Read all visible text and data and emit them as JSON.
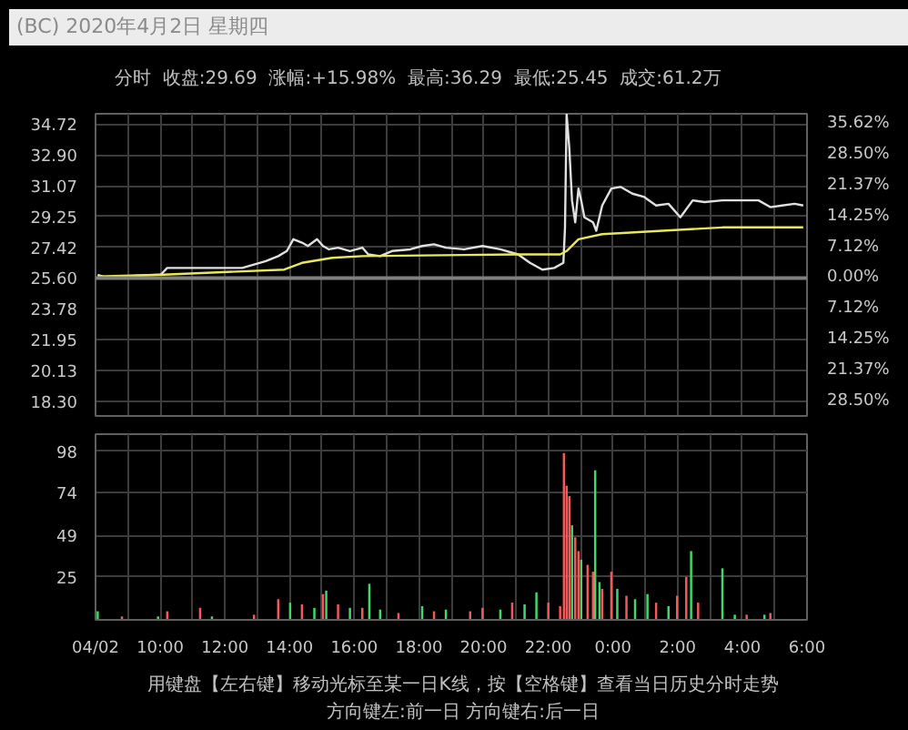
{
  "chart_data": [
    {
      "type": "line",
      "title": "(BC) 2020年4月2日 星期四",
      "subtitle": "分时  收盘:29.69  涨幅:+15.98%  最高:36.29  最低:25.45  成交:61.2万",
      "xlim": [
        "2020-04-02T08:00",
        "2020-04-03T06:00"
      ],
      "ylim": [
        17.43,
        35.33
      ],
      "y2lim": [
        -31.91,
        38.01
      ],
      "grid": true,
      "tick_labels": "y",
      "xticks": [
        {
          "value": "2020-04-02T08:00",
          "label": null
        },
        {
          "value": "2020-04-02T09:00",
          "label": null
        },
        {
          "value": "2020-04-02T10:00",
          "label": null
        },
        {
          "value": "2020-04-02T11:00",
          "label": null
        },
        {
          "value": "2020-04-02T12:00",
          "label": null
        },
        {
          "value": "2020-04-02T13:00",
          "label": null
        },
        {
          "value": "2020-04-02T14:00",
          "label": null
        },
        {
          "value": "2020-04-02T15:00",
          "label": null
        },
        {
          "value": "2020-04-02T16:00",
          "label": null
        },
        {
          "value": "2020-04-02T17:00",
          "label": null
        },
        {
          "value": "2020-04-02T18:00",
          "label": null
        },
        {
          "value": "2020-04-02T19:00",
          "label": null
        },
        {
          "value": "2020-04-02T20:00",
          "label": null
        },
        {
          "value": "2020-04-02T21:00",
          "label": null
        },
        {
          "value": "2020-04-02T22:00",
          "label": null
        },
        {
          "value": "2020-04-02T23:00",
          "label": null
        },
        {
          "value": "2020-04-03T00:00",
          "label": null
        },
        {
          "value": "2020-04-03T01:00",
          "label": null
        },
        {
          "value": "2020-04-03T02:00",
          "label": null
        },
        {
          "value": "2020-04-03T03:00",
          "label": null
        },
        {
          "value": "2020-04-03T04:00",
          "label": null
        },
        {
          "value": "2020-04-03T05:00",
          "label": null
        },
        {
          "value": "2020-04-03T06:00",
          "label": null
        }
      ],
      "yticks": [
        {
          "value": 34.72,
          "label": "34.72"
        },
        {
          "value": 32.9,
          "label": "32.90"
        },
        {
          "value": 31.07,
          "label": "31.07"
        },
        {
          "value": 29.25,
          "label": "29.25"
        },
        {
          "value": 27.42,
          "label": "27.42"
        },
        {
          "value": 25.6,
          "label": "25.60"
        },
        {
          "value": 23.78,
          "label": "23.78"
        },
        {
          "value": 21.95,
          "label": "21.95"
        },
        {
          "value": 20.13,
          "label": "20.13"
        },
        {
          "value": 18.3,
          "label": "18.30"
        }
      ],
      "y2ticks": [
        {
          "value": 35.62,
          "label": "35.62%"
        },
        {
          "value": 28.5,
          "label": "28.50%"
        },
        {
          "value": 21.37,
          "label": "21.37%"
        },
        {
          "value": 14.25,
          "label": "14.25%"
        },
        {
          "value": 7.12,
          "label": "7.12%"
        },
        {
          "value": 0,
          "label": "0.00%"
        },
        {
          "value": -7.12,
          "label": "7.12%"
        },
        {
          "value": -14.25,
          "label": "14.25%"
        },
        {
          "value": -21.37,
          "label": "21.37%"
        },
        {
          "value": -28.5,
          "label": "28.50%"
        }
      ],
      "ref_lines": [
        {
          "axis": "y",
          "value": 25.6,
          "color": "#808080"
        }
      ],
      "series": [
        {
          "color": "#e0e0e0",
          "x": [
            "2020-04-02T08:04",
            "2020-04-02T08:21",
            "2020-04-02T08:49",
            "2020-04-02T10:01",
            "2020-04-02T10:13",
            "2020-04-02T10:40",
            "2020-04-02T11:36",
            "2020-04-02T12:32",
            "2020-04-02T12:54",
            "2020-04-02T13:16",
            "2020-04-02T13:39",
            "2020-04-02T13:55",
            "2020-04-02T14:07",
            "2020-04-02T14:23",
            "2020-04-02T14:34",
            "2020-04-02T14:51",
            "2020-04-02T15:02",
            "2020-04-02T15:13",
            "2020-04-02T15:30",
            "2020-04-02T15:52",
            "2020-04-02T16:15",
            "2020-04-02T16:26",
            "2020-04-02T16:48",
            "2020-04-02T17:10",
            "2020-04-02T17:44",
            "2020-04-02T18:06",
            "2020-04-02T18:28",
            "2020-04-02T18:50",
            "2020-04-02T19:24",
            "2020-04-02T19:58",
            "2020-04-02T20:31",
            "2020-04-02T21:04",
            "2020-04-02T21:26",
            "2020-04-02T21:49",
            "2020-04-02T22:11",
            "2020-04-02T22:28",
            "2020-04-02T22:31",
            "2020-04-02T22:34",
            "2020-04-02T22:39",
            "2020-04-02T22:44",
            "2020-04-02T22:50",
            "2020-04-02T22:56",
            "2020-04-02T23:01",
            "2020-04-02T23:07",
            "2020-04-02T23:23",
            "2020-04-02T23:29",
            "2020-04-02T23:40",
            "2020-04-02T23:57",
            "2020-04-03T00:14",
            "2020-04-03T00:36",
            "2020-04-03T00:58",
            "2020-04-03T01:20",
            "2020-04-03T01:43",
            "2020-04-03T02:05",
            "2020-04-03T02:28",
            "2020-04-03T02:50",
            "2020-04-03T03:23",
            "2020-04-03T03:56",
            "2020-04-03T04:30",
            "2020-04-03T04:52",
            "2020-04-03T05:14",
            "2020-04-03T05:37",
            "2020-04-03T05:53"
          ],
          "values": [
            25.8,
            25.6,
            25.7,
            25.8,
            26.2,
            26.2,
            26.2,
            26.2,
            26.4,
            26.6,
            26.9,
            27.2,
            27.9,
            27.7,
            27.5,
            27.9,
            27.5,
            27.3,
            27.4,
            27.2,
            27.4,
            27.0,
            26.9,
            27.2,
            27.3,
            27.5,
            27.6,
            27.4,
            27.3,
            27.5,
            27.3,
            27.0,
            26.5,
            26.1,
            26.2,
            26.5,
            28.6,
            35.3,
            33.3,
            30.2,
            28.9,
            30.9,
            30.2,
            29.2,
            28.9,
            28.4,
            29.9,
            30.9,
            31.0,
            30.6,
            30.4,
            29.9,
            30.0,
            29.2,
            30.2,
            30.1,
            30.2,
            30.2,
            30.2,
            29.8,
            29.9,
            30.0,
            29.9
          ]
        },
        {
          "color": "#e8e85a",
          "x": [
            "2020-04-02T08:04",
            "2020-04-02T10:07",
            "2020-04-02T13:50",
            "2020-04-02T14:23",
            "2020-04-02T15:19",
            "2020-04-02T16:15",
            "2020-04-02T21:04",
            "2020-04-02T22:22",
            "2020-04-02T22:34",
            "2020-04-02T22:56",
            "2020-04-02T23:40",
            "2020-04-03T01:32",
            "2020-04-03T03:23",
            "2020-04-03T05:53"
          ],
          "values": [
            25.7,
            25.8,
            26.1,
            26.5,
            26.8,
            26.9,
            27.0,
            27.0,
            27.2,
            27.9,
            28.2,
            28.4,
            28.6,
            28.6
          ]
        }
      ]
    },
    {
      "type": "bar",
      "xlim": [
        "2020-04-02T08:00",
        "2020-04-03T06:00"
      ],
      "ylim": [
        0,
        108
      ],
      "grid": true,
      "xticks": [
        {
          "value": "2020-04-02T08:00",
          "label": "04/02"
        },
        {
          "value": "2020-04-02T09:00",
          "label": null
        },
        {
          "value": "2020-04-02T10:00",
          "label": "10:00"
        },
        {
          "value": "2020-04-02T11:00",
          "label": null
        },
        {
          "value": "2020-04-02T12:00",
          "label": "12:00"
        },
        {
          "value": "2020-04-02T13:00",
          "label": null
        },
        {
          "value": "2020-04-02T14:00",
          "label": "14:00"
        },
        {
          "value": "2020-04-02T15:00",
          "label": null
        },
        {
          "value": "2020-04-02T16:00",
          "label": "16:00"
        },
        {
          "value": "2020-04-02T17:00",
          "label": null
        },
        {
          "value": "2020-04-02T18:00",
          "label": "18:00"
        },
        {
          "value": "2020-04-02T19:00",
          "label": null
        },
        {
          "value": "2020-04-02T20:00",
          "label": "20:00"
        },
        {
          "value": "2020-04-02T21:00",
          "label": null
        },
        {
          "value": "2020-04-02T22:00",
          "label": "22:00"
        },
        {
          "value": "2020-04-02T23:00",
          "label": null
        },
        {
          "value": "2020-04-03T00:00",
          "label": "0:00"
        },
        {
          "value": "2020-04-03T01:00",
          "label": null
        },
        {
          "value": "2020-04-03T02:00",
          "label": "2:00"
        },
        {
          "value": "2020-04-03T03:00",
          "label": null
        },
        {
          "value": "2020-04-03T04:00",
          "label": "4:00"
        },
        {
          "value": "2020-04-03T05:00",
          "label": null
        },
        {
          "value": "2020-04-03T06:00",
          "label": "6:00"
        }
      ],
      "yticks": [
        98,
        74,
        49,
        25
      ],
      "x": [
        "2020-04-02T08:04",
        "2020-04-02T08:49",
        "2020-04-02T09:56",
        "2020-04-02T10:13",
        "2020-04-02T11:14",
        "2020-04-02T11:36",
        "2020-04-02T12:54",
        "2020-04-02T13:39",
        "2020-04-02T14:01",
        "2020-04-02T14:23",
        "2020-04-02T14:46",
        "2020-04-02T15:02",
        "2020-04-02T15:08",
        "2020-04-02T15:30",
        "2020-04-02T15:52",
        "2020-04-02T16:15",
        "2020-04-02T16:28",
        "2020-04-02T16:48",
        "2020-04-02T17:22",
        "2020-04-02T18:06",
        "2020-04-02T18:28",
        "2020-04-02T18:50",
        "2020-04-02T19:35",
        "2020-04-02T19:58",
        "2020-04-02T20:31",
        "2020-04-02T20:53",
        "2020-04-02T21:16",
        "2020-04-02T21:38",
        "2020-04-02T22:00",
        "2020-04-02T22:22",
        "2020-04-02T22:29",
        "2020-04-02T22:34",
        "2020-04-02T22:39",
        "2020-04-02T22:44",
        "2020-04-02T22:50",
        "2020-04-02T22:56",
        "2020-04-02T23:01",
        "2020-04-02T23:13",
        "2020-04-02T23:23",
        "2020-04-02T23:27",
        "2020-04-02T23:35",
        "2020-04-02T23:40",
        "2020-04-02T23:57",
        "2020-04-03T00:08",
        "2020-04-03T00:25",
        "2020-04-03T00:41",
        "2020-04-03T01:04",
        "2020-04-03T01:20",
        "2020-04-03T01:43",
        "2020-04-03T01:59",
        "2020-04-03T02:16",
        "2020-04-03T02:25",
        "2020-04-03T02:38",
        "2020-04-03T03:23",
        "2020-04-03T03:46",
        "2020-04-03T04:08",
        "2020-04-03T04:41",
        "2020-04-03T04:52"
      ],
      "values": [
        5,
        2,
        2,
        5,
        7,
        2,
        3,
        12,
        10,
        9,
        7,
        15,
        17,
        9,
        7,
        7,
        21,
        6,
        4,
        8,
        5,
        6,
        5,
        7,
        6,
        10,
        9,
        16,
        10,
        8,
        97,
        78,
        72,
        55,
        48,
        40,
        35,
        32,
        28,
        87,
        22,
        18,
        28,
        18,
        14,
        12,
        15,
        10,
        8,
        14,
        25,
        40,
        10,
        30,
        3,
        3,
        3,
        4
      ],
      "colors": [
        "#3fd86a",
        "#f05a5a",
        "#3fd86a",
        "#f05a5a",
        "#f05a5a",
        "#3fd86a",
        "#f05a5a",
        "#f05a5a",
        "#3fd86a",
        "#f05a5a",
        "#3fd86a",
        "#f05a5a",
        "#3fd86a",
        "#f05a5a",
        "#3fd86a",
        "#f05a5a",
        "#3fd86a",
        "#3fd86a",
        "#f05a5a",
        "#3fd86a",
        "#f05a5a",
        "#3fd86a",
        "#f05a5a",
        "#f05a5a",
        "#3fd86a",
        "#f05a5a",
        "#3fd86a",
        "#3fd86a",
        "#f05a5a",
        "#f05a5a",
        "#f05a5a",
        "#f05a5a",
        "#f05a5a",
        "#3fd86a",
        "#f05a5a",
        "#f05a5a",
        "#3fd86a",
        "#f05a5a",
        "#f05a5a",
        "#3fd86a",
        "#3fd86a",
        "#f05a5a",
        "#f05a5a",
        "#3fd86a",
        "#f05a5a",
        "#3fd86a",
        "#3fd86a",
        "#f05a5a",
        "#3fd86a",
        "#f05a5a",
        "#f05a5a",
        "#3fd86a",
        "#f05a5a",
        "#3fd86a",
        "#3fd86a",
        "#f05a5a",
        "#3fd86a",
        "#f05a5a"
      ],
      "annotations": [
        "用键盘【左右键】移动光标至某一日K线，按【空格键】查看当日历史分时走势",
        "方向键左:前一日   方向键右:后一日"
      ]
    }
  ]
}
